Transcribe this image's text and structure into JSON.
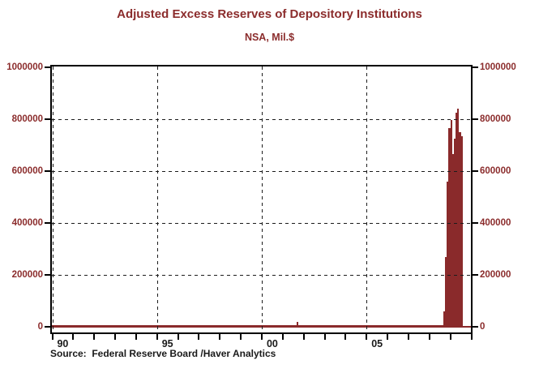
{
  "colors": {
    "accent_maroon": "#8A2A2B",
    "label_maroon": "#8B2C2C",
    "grid_black": "#1c1c1c"
  },
  "chart_data": {
    "type": "bar",
    "title": "Adjusted Excess Reserves of Depository Institutions",
    "subtitle": "NSA, Mil.$",
    "source": "Source:  Federal Reserve Board /Haver Analytics",
    "unit": "Mil.$",
    "frequency": "monthly",
    "start": "1989-11",
    "end": "2009-07",
    "x_axis": {
      "range_years": [
        1989.9,
        2010.0
      ],
      "tick_year_first": 1990,
      "tick_year_last": 2010,
      "gridline_years": [
        1990,
        1995,
        2000,
        2005
      ],
      "labels": [
        {
          "year": 1990,
          "text": "90"
        },
        {
          "year": 1995,
          "text": "95"
        },
        {
          "year": 2000,
          "text": "00"
        },
        {
          "year": 2005,
          "text": "05"
        }
      ]
    },
    "y_axis": {
      "min": -28000,
      "max": 1010000,
      "ticks": [
        {
          "value": 0,
          "label": "0"
        },
        {
          "value": 200000,
          "label": "200000"
        },
        {
          "value": 400000,
          "label": "400000"
        },
        {
          "value": 600000,
          "label": "600000"
        },
        {
          "value": 800000,
          "label": "800000"
        },
        {
          "value": 1000000,
          "label": "1000000"
        }
      ],
      "gridline_values": [
        200000,
        400000,
        600000,
        800000
      ],
      "grid": true
    },
    "values": [
      1000,
      950,
      900,
      1000,
      950,
      1050,
      900,
      1000,
      1100,
      950,
      1000,
      900,
      1050,
      2600,
      2200,
      1100,
      950,
      900,
      1000,
      950,
      900,
      1000,
      950,
      900,
      1000,
      1200,
      1000,
      950,
      1100,
      900,
      1000,
      950,
      1050,
      1000,
      900,
      1000,
      950,
      1300,
      1000,
      900,
      950,
      1000,
      1050,
      900,
      1000,
      950,
      1000,
      900,
      1050,
      1200,
      1100,
      1000,
      950,
      1050,
      1000,
      1100,
      950,
      1000,
      1050,
      900,
      1000,
      1300,
      1200,
      1050,
      1000,
      1100,
      950,
      1050,
      1000,
      1250,
      1100,
      1000,
      1050,
      1400,
      1250,
      1100,
      1050,
      1200,
      1000,
      1100,
      1250,
      1050,
      1100,
      1000,
      1200,
      1500,
      1300,
      1150,
      1100,
      1250,
      1050,
      1150,
      1300,
      1100,
      1150,
      1050,
      1250,
      1600,
      1400,
      1200,
      1150,
      1300,
      1100,
      1200,
      1350,
      1150,
      1200,
      1100,
      1300,
      1700,
      1500,
      1250,
      1200,
      1350,
      1150,
      1250,
      1400,
      1200,
      1300,
      1400,
      1800,
      3000,
      2500,
      1300,
      1150,
      1250,
      1100,
      1200,
      1300,
      1150,
      1200,
      1100,
      1250,
      1600,
      1400,
      1250,
      1150,
      1300,
      1100,
      1200,
      1250,
      1900,
      19000,
      2500,
      1600,
      1500,
      1300,
      1200,
      1150,
      1250,
      1100,
      1150,
      1300,
      1100,
      1200,
      1050,
      1250,
      1500,
      1350,
      1700,
      4800,
      2000,
      1300,
      1200,
      1250,
      1800,
      1400,
      1200,
      1300,
      1500,
      1300,
      1150,
      1100,
      1250,
      1050,
      1150,
      1200,
      1100,
      1150,
      1000,
      1200,
      1400,
      1250,
      1100,
      1050,
      1200,
      1000,
      1100,
      1150,
      1050,
      1100,
      950,
      1150,
      1350,
      1200,
      1050,
      1000,
      1150,
      950,
      1050,
      1100,
      1000,
      1050,
      900,
      1100,
      1300,
      1250,
      1100,
      1050,
      1150,
      1000,
      1100,
      1200,
      1900,
      1500,
      1200,
      1350,
      1800,
      1800,
      1700,
      1800,
      1800,
      1900,
      1900,
      1800,
      1900,
      60000,
      268000,
      559000,
      767000,
      798000,
      667000,
      725000,
      824000,
      842000,
      749000,
      733000
    ]
  }
}
